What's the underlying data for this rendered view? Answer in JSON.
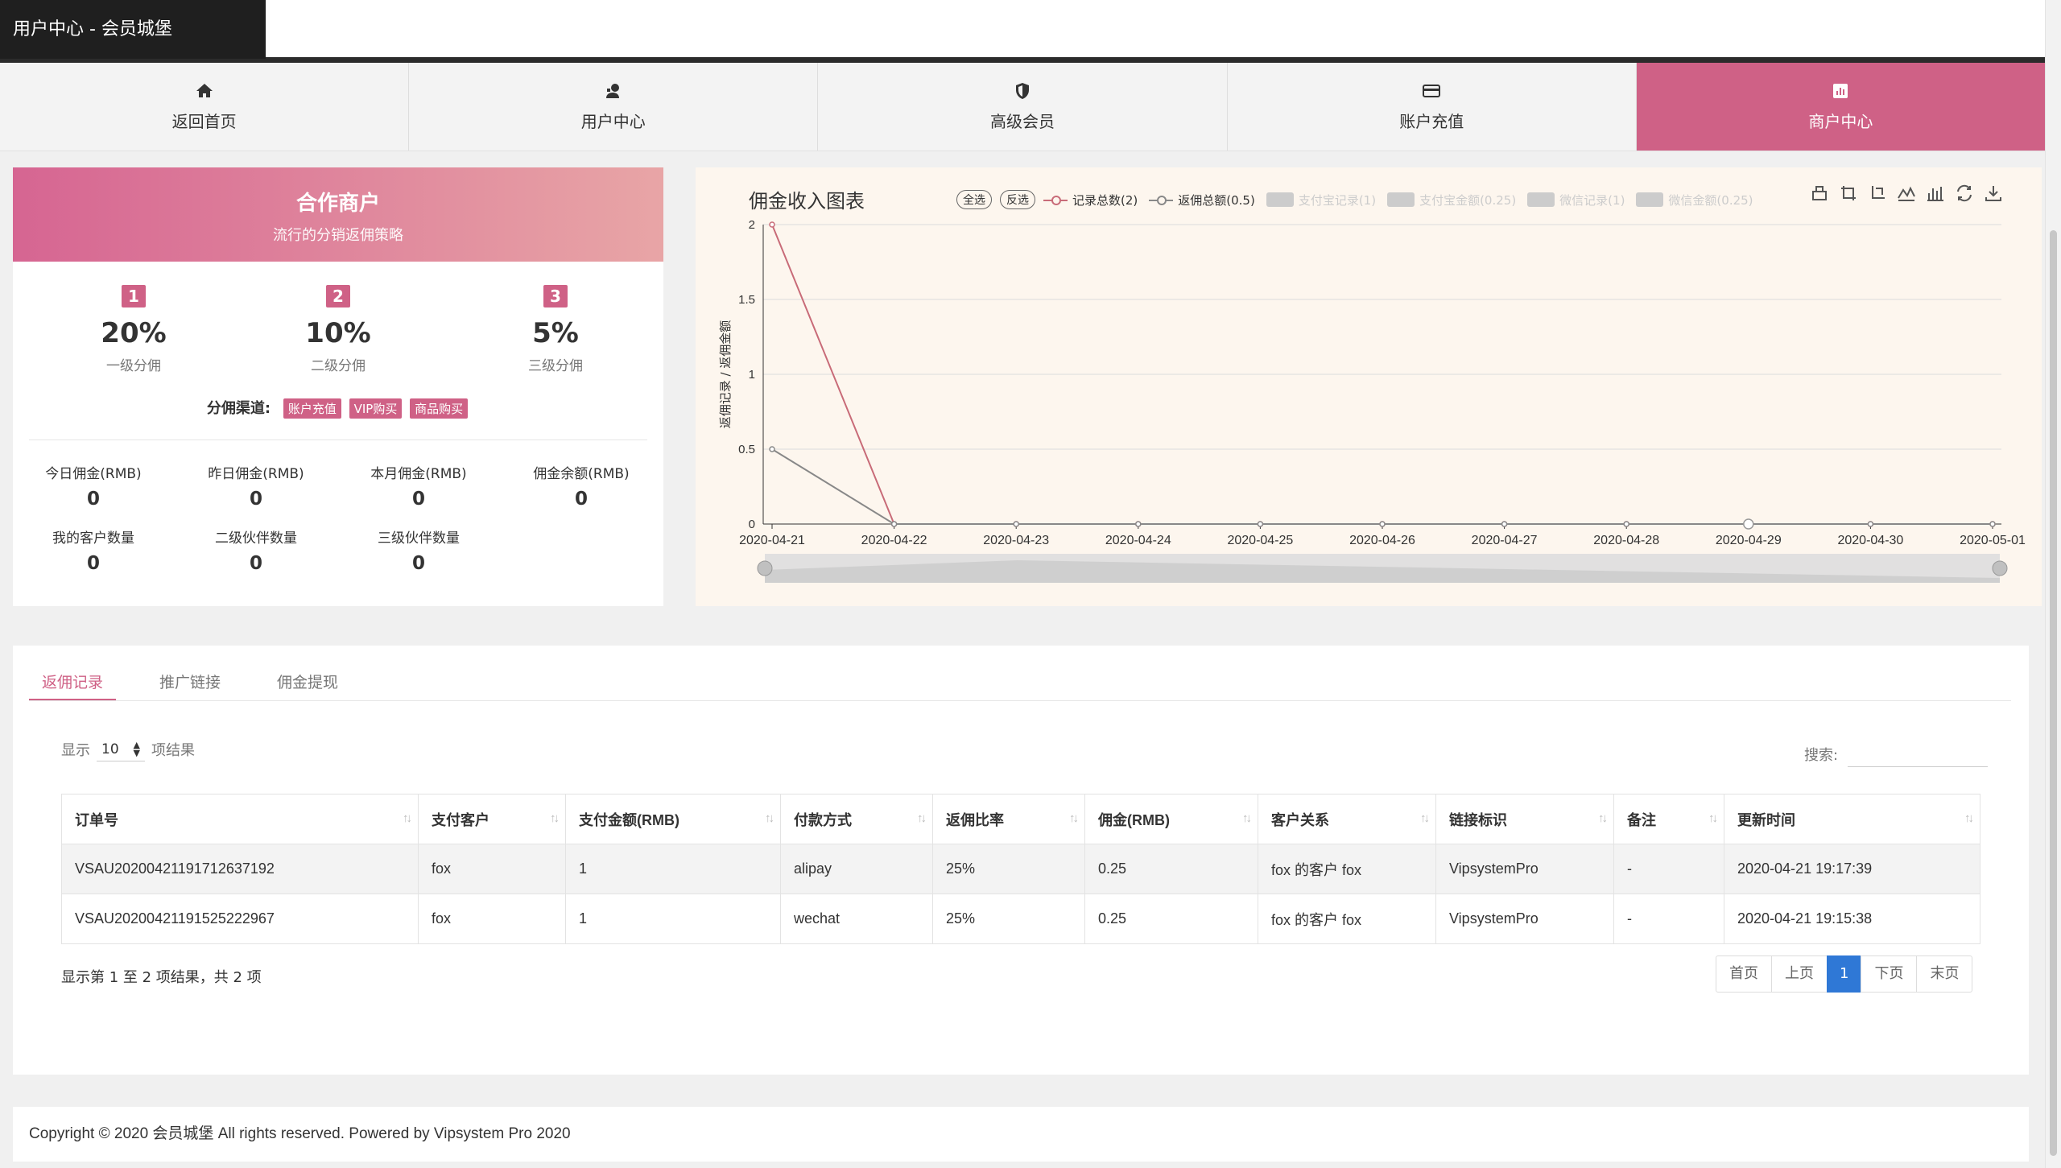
{
  "header": {
    "title": "用户中心 - 会员城堡"
  },
  "nav": [
    {
      "label": "返回首页",
      "icon": "home-icon",
      "active": false
    },
    {
      "label": "用户中心",
      "icon": "user-center-icon",
      "active": false
    },
    {
      "label": "高级会员",
      "icon": "shield-icon",
      "active": false
    },
    {
      "label": "账户充值",
      "icon": "credit-card-icon",
      "active": false
    },
    {
      "label": "商户中心",
      "icon": "bar-chart-icon",
      "active": true
    }
  ],
  "merchant": {
    "title": "合作商户",
    "subtitle": "流行的分销返佣策略",
    "tiers": [
      {
        "num": "1",
        "pct": "20%",
        "label": "一级分佣"
      },
      {
        "num": "2",
        "pct": "10%",
        "label": "二级分佣"
      },
      {
        "num": "3",
        "pct": "5%",
        "label": "三级分佣"
      }
    ],
    "channels_label": "分佣渠道:",
    "channels": [
      "账户充值",
      "VIP购买",
      "商品购买"
    ],
    "stats": [
      {
        "label": "今日佣金(RMB)",
        "value": "0"
      },
      {
        "label": "昨日佣金(RMB)",
        "value": "0"
      },
      {
        "label": "本月佣金(RMB)",
        "value": "0"
      },
      {
        "label": "佣金余额(RMB)",
        "value": "0"
      },
      {
        "label": "我的客户数量",
        "value": "0"
      },
      {
        "label": "二级伙伴数量",
        "value": "0"
      },
      {
        "label": "三级伙伴数量",
        "value": "0"
      }
    ]
  },
  "chart_controls": {
    "select_all": "全选",
    "invert": "反选"
  },
  "chart_data": {
    "type": "line",
    "title": "佣金收入图表",
    "ylabel": "返佣记录 / 返佣金额",
    "xlabel": "",
    "ylim": [
      0,
      2
    ],
    "yticks": [
      0,
      0.5,
      1,
      1.5,
      2
    ],
    "categories": [
      "2020-04-21",
      "2020-04-22",
      "2020-04-23",
      "2020-04-24",
      "2020-04-25",
      "2020-04-26",
      "2020-04-27",
      "2020-04-28",
      "2020-04-29",
      "2020-04-30",
      "2020-05-01"
    ],
    "series": [
      {
        "name": "记录总数(2)",
        "color": "#c86b78",
        "visible": true,
        "values": [
          2,
          0,
          0,
          0,
          0,
          0,
          0,
          0,
          0,
          0,
          0
        ]
      },
      {
        "name": "返佣总额(0.5)",
        "color": "#888888",
        "visible": true,
        "values": [
          0.5,
          0,
          0,
          0,
          0,
          0,
          0,
          0,
          0,
          0,
          0
        ]
      },
      {
        "name": "支付宝记录(1)",
        "visible": false
      },
      {
        "name": "支付宝金额(0.25)",
        "visible": false
      },
      {
        "name": "微信记录(1)",
        "visible": false
      },
      {
        "name": "微信金额(0.25)",
        "visible": false
      }
    ],
    "grid": true,
    "legend_position": "top"
  },
  "chart_tools": [
    "table-icon",
    "zoom-icon",
    "zoom-reset-icon",
    "line-type-icon",
    "bar-type-icon",
    "refresh-icon",
    "download-icon"
  ],
  "records": {
    "tabs": [
      {
        "label": "返佣记录",
        "active": true
      },
      {
        "label": "推广链接",
        "active": false
      },
      {
        "label": "佣金提现",
        "active": false
      }
    ],
    "length_prefix": "显示",
    "length_value": "10",
    "length_suffix": "项结果",
    "search_label": "搜索:",
    "search_value": "",
    "columns": [
      "订单号",
      "支付客户",
      "支付金额(RMB)",
      "付款方式",
      "返佣比率",
      "佣金(RMB)",
      "客户关系",
      "链接标识",
      "备注",
      "更新时间"
    ],
    "rows": [
      [
        "VSAU20200421191712637192",
        "fox",
        "1",
        "alipay",
        "25%",
        "0.25",
        "fox 的客户 fox",
        "VipsystemPro",
        "-",
        "2020-04-21 19:17:39"
      ],
      [
        "VSAU20200421191525222967",
        "fox",
        "1",
        "wechat",
        "25%",
        "0.25",
        "fox 的客户 fox",
        "VipsystemPro",
        "-",
        "2020-04-21 19:15:38"
      ]
    ],
    "info": "显示第 1 至 2 项结果，共 2 项",
    "pager": [
      {
        "label": "首页",
        "active": false
      },
      {
        "label": "上页",
        "active": false
      },
      {
        "label": "1",
        "active": true
      },
      {
        "label": "下页",
        "active": false
      },
      {
        "label": "末页",
        "active": false
      }
    ]
  },
  "footer": {
    "text": "Copyright © 2020 会员城堡 All rights reserved. Powered by Vipsystem Pro 2020"
  }
}
